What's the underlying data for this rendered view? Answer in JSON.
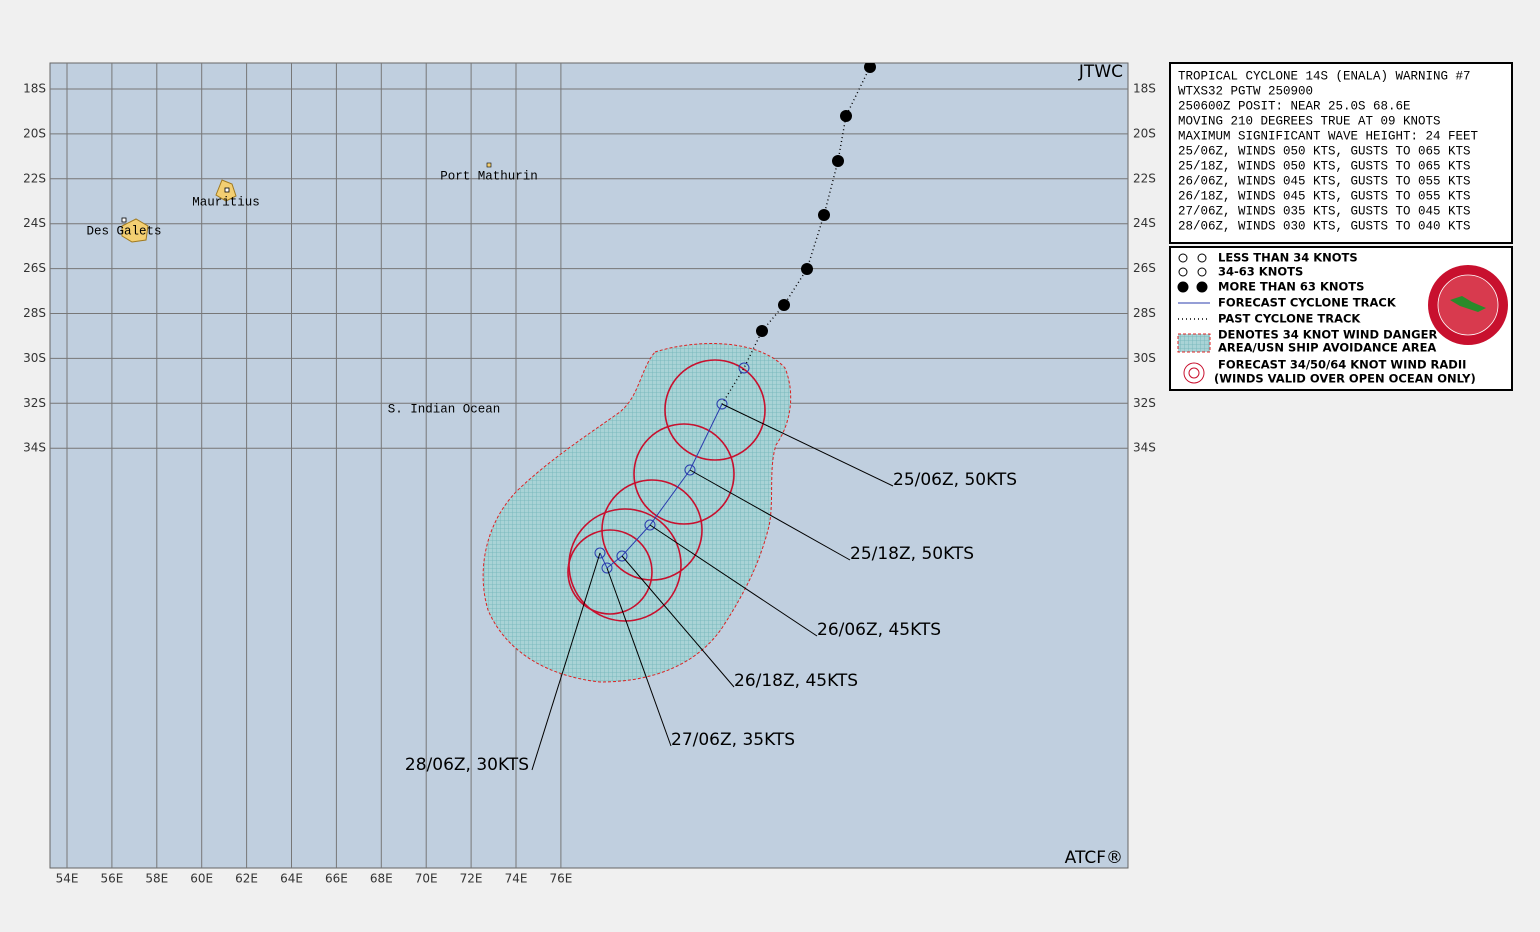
{
  "map": {
    "lon_labels": [
      "54E",
      "56E",
      "58E",
      "60E",
      "62E",
      "64E",
      "66E",
      "68E",
      "70E",
      "72E",
      "74E",
      "76E"
    ],
    "lat_labels": [
      "18S",
      "20S",
      "22S",
      "24S",
      "26S",
      "28S",
      "30S",
      "32S",
      "34S"
    ],
    "places": [
      "Port Mathurin",
      "Mauritius",
      "Des Galets",
      "S. Indian Ocean"
    ],
    "watermarks": [
      "JTWC",
      "ATCF®"
    ],
    "forecast_labels": [
      "25/06Z, 50KTS",
      "25/18Z, 50KTS",
      "26/06Z, 45KTS",
      "26/18Z, 45KTS",
      "27/06Z, 35KTS",
      "28/06Z, 30KTS"
    ]
  },
  "warning": {
    "lines": [
      "TROPICAL CYCLONE 14S (ENALA) WARNING #7",
      "WTXS32 PGTW 250900",
      "250600Z POSIT: NEAR 25.0S 68.6E",
      "MOVING 210 DEGREES TRUE AT 09 KNOTS",
      "MAXIMUM SIGNIFICANT WAVE HEIGHT: 24 FEET",
      "25/06Z, WINDS 050 KTS, GUSTS TO 065 KTS",
      "25/18Z, WINDS 050 KTS, GUSTS TO 065 KTS",
      "26/06Z, WINDS 045 KTS, GUSTS TO 055 KTS",
      "26/18Z, WINDS 045 KTS, GUSTS TO 055 KTS",
      "27/06Z, WINDS 035 KTS, GUSTS TO 045 KTS",
      "28/06Z, WINDS 030 KTS, GUSTS TO 040 KTS"
    ]
  },
  "legend": {
    "items": [
      "LESS THAN 34 KNOTS",
      "34-63 KNOTS",
      "MORE THAN 63 KNOTS",
      "FORECAST CYCLONE TRACK",
      "PAST CYCLONE TRACK",
      "DENOTES 34 KNOT WIND DANGER",
      "AREA/USN SHIP AVOIDANCE AREA",
      "FORECAST 34/50/64 KNOT WIND RADII",
      "(WINDS VALID OVER OPEN OCEAN ONLY)"
    ]
  }
}
